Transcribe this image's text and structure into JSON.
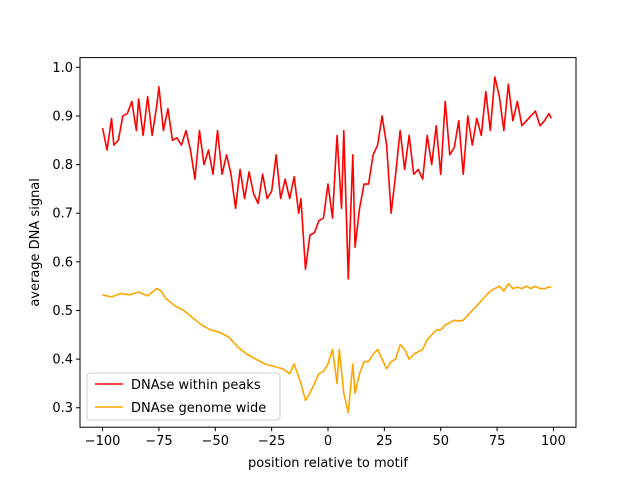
{
  "chart_data": {
    "type": "line",
    "title": "",
    "xlabel": "position relative to motif",
    "ylabel": "average DNA signal",
    "xlim": [
      -110,
      110
    ],
    "ylim": [
      0.26,
      1.02
    ],
    "xticks": [
      -100,
      -75,
      -50,
      -25,
      0,
      25,
      50,
      75,
      100
    ],
    "yticks": [
      0.3,
      0.4,
      0.5,
      0.6,
      0.7,
      0.8,
      0.9,
      1.0
    ],
    "xtick_labels": [
      "−100",
      "−75",
      "−50",
      "−25",
      "0",
      "25",
      "50",
      "75",
      "100"
    ],
    "ytick_labels": [
      "0.3",
      "0.4",
      "0.5",
      "0.6",
      "0.7",
      "0.8",
      "0.9",
      "1.0"
    ],
    "grid": false,
    "legend_position": "lower-left",
    "series": [
      {
        "name": "DNAse within peaks",
        "color": "#ff0000",
        "points": [
          [
            -100,
            0.875
          ],
          [
            -98,
            0.83
          ],
          [
            -96,
            0.895
          ],
          [
            -95,
            0.84
          ],
          [
            -93,
            0.85
          ],
          [
            -91,
            0.9
          ],
          [
            -89,
            0.905
          ],
          [
            -87,
            0.93
          ],
          [
            -85,
            0.87
          ],
          [
            -84,
            0.935
          ],
          [
            -82,
            0.86
          ],
          [
            -80,
            0.94
          ],
          [
            -78,
            0.86
          ],
          [
            -76,
            0.92
          ],
          [
            -75,
            0.96
          ],
          [
            -73,
            0.87
          ],
          [
            -71,
            0.915
          ],
          [
            -69,
            0.85
          ],
          [
            -67,
            0.855
          ],
          [
            -65,
            0.84
          ],
          [
            -63,
            0.87
          ],
          [
            -61,
            0.83
          ],
          [
            -59,
            0.77
          ],
          [
            -57,
            0.87
          ],
          [
            -55,
            0.8
          ],
          [
            -53,
            0.83
          ],
          [
            -51,
            0.78
          ],
          [
            -49,
            0.87
          ],
          [
            -47,
            0.78
          ],
          [
            -45,
            0.82
          ],
          [
            -43,
            0.78
          ],
          [
            -41,
            0.71
          ],
          [
            -39,
            0.79
          ],
          [
            -37,
            0.73
          ],
          [
            -35,
            0.785
          ],
          [
            -33,
            0.74
          ],
          [
            -31,
            0.72
          ],
          [
            -29,
            0.78
          ],
          [
            -27,
            0.73
          ],
          [
            -25,
            0.745
          ],
          [
            -23,
            0.82
          ],
          [
            -21,
            0.73
          ],
          [
            -19,
            0.77
          ],
          [
            -17,
            0.73
          ],
          [
            -15,
            0.775
          ],
          [
            -13,
            0.7
          ],
          [
            -12,
            0.73
          ],
          [
            -10,
            0.585
          ],
          [
            -8,
            0.655
          ],
          [
            -6,
            0.66
          ],
          [
            -4,
            0.685
          ],
          [
            -2,
            0.69
          ],
          [
            0,
            0.76
          ],
          [
            2,
            0.69
          ],
          [
            4,
            0.86
          ],
          [
            6,
            0.71
          ],
          [
            7,
            0.87
          ],
          [
            9,
            0.565
          ],
          [
            11,
            0.82
          ],
          [
            12,
            0.63
          ],
          [
            14,
            0.71
          ],
          [
            16,
            0.76
          ],
          [
            18,
            0.76
          ],
          [
            20,
            0.82
          ],
          [
            22,
            0.84
          ],
          [
            24,
            0.9
          ],
          [
            26,
            0.84
          ],
          [
            28,
            0.7
          ],
          [
            30,
            0.78
          ],
          [
            32,
            0.87
          ],
          [
            34,
            0.79
          ],
          [
            36,
            0.86
          ],
          [
            38,
            0.78
          ],
          [
            40,
            0.79
          ],
          [
            42,
            0.77
          ],
          [
            44,
            0.86
          ],
          [
            46,
            0.8
          ],
          [
            48,
            0.88
          ],
          [
            50,
            0.78
          ],
          [
            52,
            0.93
          ],
          [
            54,
            0.82
          ],
          [
            56,
            0.835
          ],
          [
            58,
            0.89
          ],
          [
            60,
            0.78
          ],
          [
            62,
            0.9
          ],
          [
            64,
            0.84
          ],
          [
            66,
            0.895
          ],
          [
            68,
            0.86
          ],
          [
            70,
            0.95
          ],
          [
            72,
            0.87
          ],
          [
            74,
            0.98
          ],
          [
            76,
            0.94
          ],
          [
            78,
            0.87
          ],
          [
            80,
            0.965
          ],
          [
            82,
            0.89
          ],
          [
            84,
            0.93
          ],
          [
            86,
            0.88
          ],
          [
            88,
            0.89
          ],
          [
            90,
            0.9
          ],
          [
            92,
            0.91
          ],
          [
            94,
            0.88
          ],
          [
            96,
            0.89
          ],
          [
            98,
            0.905
          ],
          [
            99,
            0.895
          ]
        ]
      },
      {
        "name": "DNAse genome wide",
        "color": "#ffa500",
        "points": [
          [
            -100,
            0.532
          ],
          [
            -96,
            0.528
          ],
          [
            -92,
            0.535
          ],
          [
            -88,
            0.532
          ],
          [
            -84,
            0.538
          ],
          [
            -80,
            0.53
          ],
          [
            -76,
            0.545
          ],
          [
            -74,
            0.54
          ],
          [
            -72,
            0.525
          ],
          [
            -68,
            0.51
          ],
          [
            -64,
            0.5
          ],
          [
            -60,
            0.485
          ],
          [
            -56,
            0.47
          ],
          [
            -52,
            0.46
          ],
          [
            -48,
            0.455
          ],
          [
            -44,
            0.445
          ],
          [
            -40,
            0.425
          ],
          [
            -36,
            0.41
          ],
          [
            -32,
            0.4
          ],
          [
            -28,
            0.39
          ],
          [
            -24,
            0.385
          ],
          [
            -20,
            0.38
          ],
          [
            -17,
            0.37
          ],
          [
            -15,
            0.39
          ],
          [
            -12,
            0.35
          ],
          [
            -10,
            0.315
          ],
          [
            -8,
            0.33
          ],
          [
            -6,
            0.35
          ],
          [
            -4,
            0.37
          ],
          [
            -2,
            0.375
          ],
          [
            0,
            0.39
          ],
          [
            2,
            0.42
          ],
          [
            4,
            0.35
          ],
          [
            5,
            0.42
          ],
          [
            7,
            0.33
          ],
          [
            9,
            0.29
          ],
          [
            11,
            0.39
          ],
          [
            12,
            0.33
          ],
          [
            14,
            0.37
          ],
          [
            16,
            0.395
          ],
          [
            18,
            0.395
          ],
          [
            20,
            0.41
          ],
          [
            22,
            0.42
          ],
          [
            24,
            0.4
          ],
          [
            26,
            0.38
          ],
          [
            28,
            0.395
          ],
          [
            30,
            0.4
          ],
          [
            32,
            0.43
          ],
          [
            34,
            0.42
          ],
          [
            36,
            0.4
          ],
          [
            38,
            0.41
          ],
          [
            40,
            0.415
          ],
          [
            42,
            0.42
          ],
          [
            44,
            0.44
          ],
          [
            46,
            0.45
          ],
          [
            48,
            0.46
          ],
          [
            50,
            0.46
          ],
          [
            52,
            0.47
          ],
          [
            54,
            0.475
          ],
          [
            56,
            0.48
          ],
          [
            58,
            0.478
          ],
          [
            60,
            0.48
          ],
          [
            62,
            0.49
          ],
          [
            64,
            0.5
          ],
          [
            66,
            0.51
          ],
          [
            68,
            0.52
          ],
          [
            70,
            0.53
          ],
          [
            72,
            0.54
          ],
          [
            74,
            0.545
          ],
          [
            76,
            0.55
          ],
          [
            78,
            0.54
          ],
          [
            80,
            0.555
          ],
          [
            82,
            0.545
          ],
          [
            84,
            0.548
          ],
          [
            86,
            0.545
          ],
          [
            88,
            0.55
          ],
          [
            90,
            0.545
          ],
          [
            92,
            0.55
          ],
          [
            94,
            0.545
          ],
          [
            96,
            0.545
          ],
          [
            98,
            0.548
          ],
          [
            99,
            0.548
          ]
        ]
      }
    ]
  }
}
